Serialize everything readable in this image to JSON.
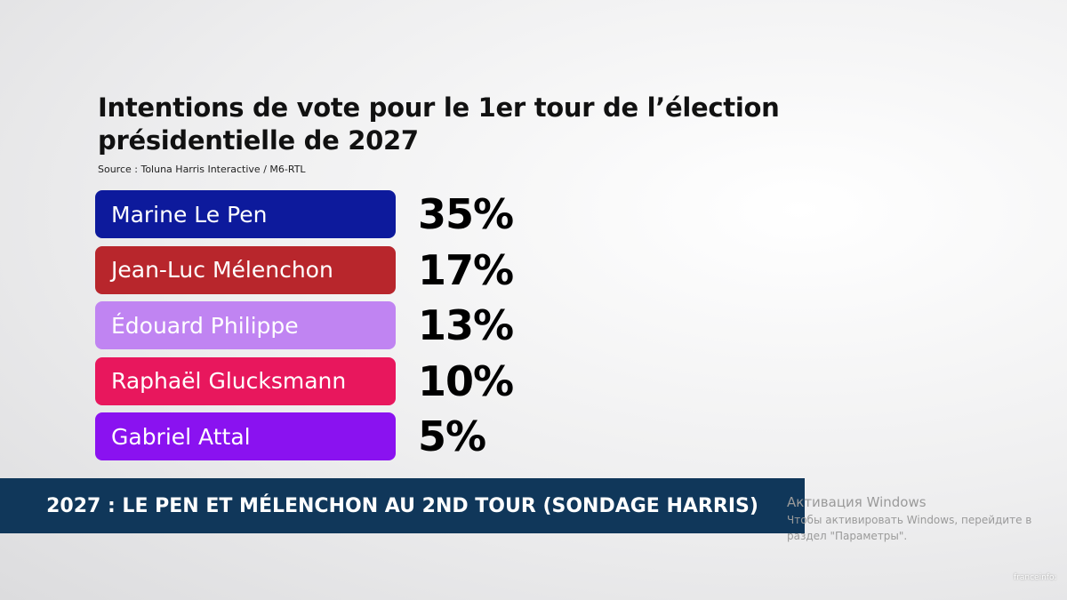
{
  "header": {
    "title_lines": [
      "Intentions de vote pour le 1er tour de l’élection",
      "présidentielle de 2027"
    ],
    "source": "Source : Toluna Harris Interactive / M6-RTL"
  },
  "rows": [
    {
      "name": "Marine Le Pen",
      "value": "35%",
      "color": "#0d1a9c"
    },
    {
      "name": "Jean-Luc Mélenchon",
      "value": "17%",
      "color": "#b8262c"
    },
    {
      "name": "Édouard Philippe",
      "value": "13%",
      "color": "#c084f2"
    },
    {
      "name": "Raphaël Glucksmann",
      "value": "10%",
      "color": "#e8175d"
    },
    {
      "name": "Gabriel Attal",
      "value": "5%",
      "color": "#8a12f0"
    }
  ],
  "banner": "2027 : LE PEN ET MÉLENCHON AU 2ND TOUR (SONDAGE HARRIS)",
  "watermark": [
    "Активация Windows",
    "Чтобы активировать Windows, перейдите в",
    "раздел \"Параметры\"."
  ],
  "logo": "franceinfo:"
}
